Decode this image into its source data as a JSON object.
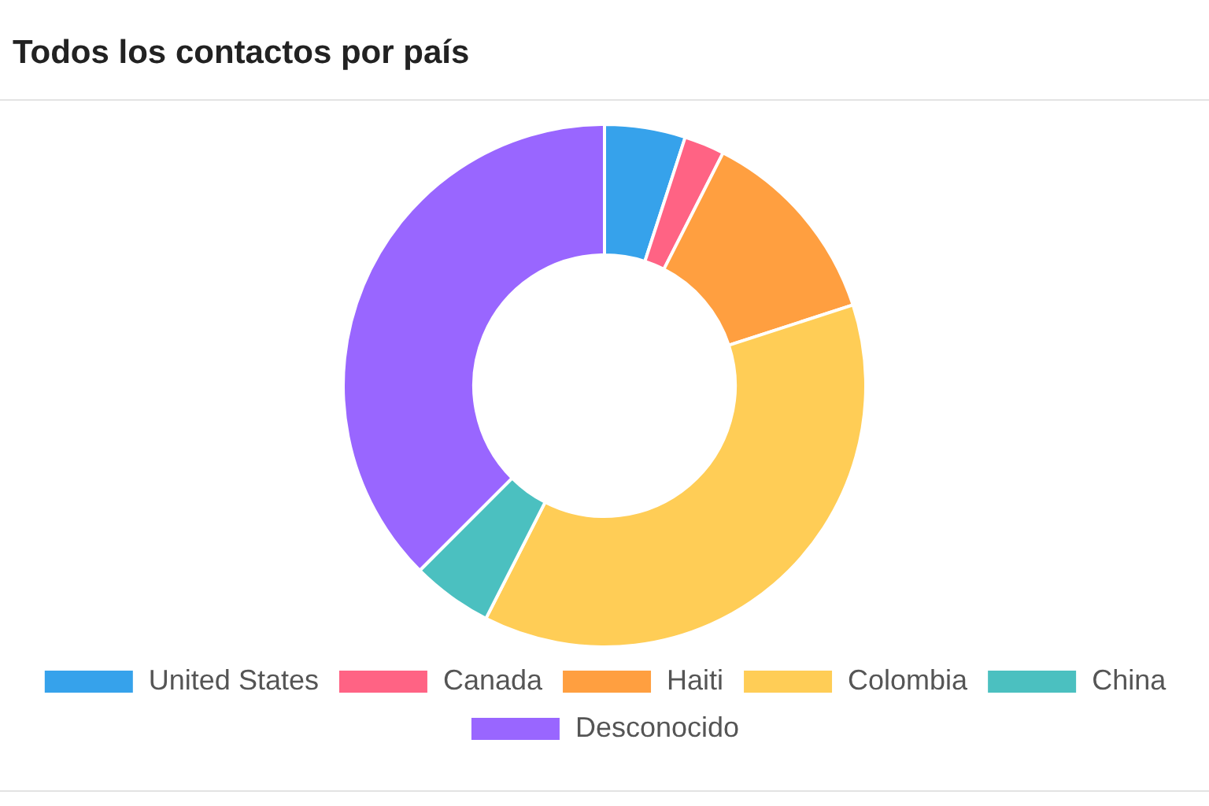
{
  "chart_data": {
    "type": "donut",
    "title": "Todos los contactos por país",
    "categories": [
      "United States",
      "Canada",
      "Haiti",
      "Colombia",
      "China",
      "Desconocido"
    ],
    "values": [
      5,
      2.5,
      12.5,
      37.5,
      5,
      37.5
    ],
    "colors": [
      "#36a2eb",
      "#ff6384",
      "#ff9f40",
      "#ffcd56",
      "#4bc0c0",
      "#9966ff"
    ],
    "legend": "bottom"
  }
}
